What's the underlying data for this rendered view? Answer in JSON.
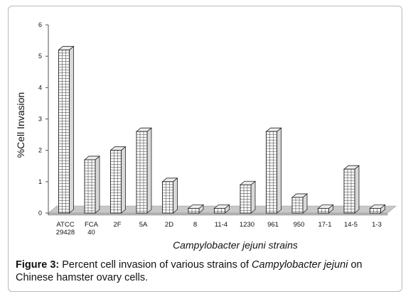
{
  "chart_data": {
    "type": "bar",
    "style": "3d-grid-pattern",
    "categories": [
      [
        "ATCC",
        "29428"
      ],
      [
        "FCA",
        "40"
      ],
      [
        "2F"
      ],
      [
        "5A"
      ],
      [
        "2D"
      ],
      [
        "8"
      ],
      [
        "11-4"
      ],
      [
        "1230"
      ],
      [
        "961"
      ],
      [
        "950"
      ],
      [
        "17-1"
      ],
      [
        "14-5"
      ],
      [
        "1-3"
      ]
    ],
    "values": [
      5.2,
      1.7,
      2.0,
      2.6,
      1.0,
      0.15,
      0.15,
      0.9,
      2.6,
      0.5,
      0.15,
      1.4,
      0.15
    ],
    "ylabel": "%Cell Invasion",
    "xlabel": "Campylobacter jejuni strains",
    "ylim": [
      0,
      6
    ],
    "yticks": [
      0,
      1,
      2,
      3,
      4,
      5,
      6
    ],
    "grid": false,
    "colors": {
      "bar_face": "#ffffff",
      "bar_grid": "#333333",
      "floor": "#c8c8c8",
      "axis": "#555555"
    }
  },
  "caption": {
    "label": "Figure 3:",
    "text_before": " Percent cell invasion of various strains of ",
    "species": "Campylobacter jejuni",
    "text_after": " on Chinese hamster ovary cells."
  }
}
